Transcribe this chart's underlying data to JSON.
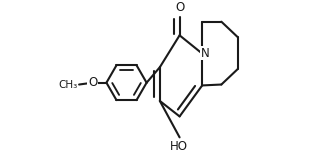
{
  "bg": "#ffffff",
  "lc": "#1a1a1a",
  "lw": 1.5,
  "dbo": 0.05,
  "fs": 8.5,
  "fw": 3.27,
  "fh": 1.55,
  "dpi": 100,
  "xlim": [
    -0.88,
    0.82
  ],
  "ylim": [
    -0.38,
    0.92
  ]
}
